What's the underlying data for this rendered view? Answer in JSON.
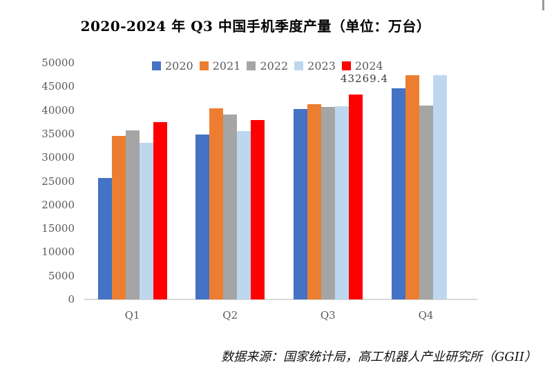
{
  "page": {
    "footer_text": "数据来源：国家统计局，高工机器人产业研究所（GGII）"
  },
  "chart_data": {
    "type": "bar",
    "title": "2020-2024 年 Q3 中国手机季度产量（单位：万台）",
    "unit": "万台",
    "categories": [
      "Q1",
      "Q2",
      "Q3",
      "Q4"
    ],
    "series": [
      {
        "name": "2020",
        "color": "#4472C4",
        "values": [
          25700,
          34800,
          40200,
          44600
        ]
      },
      {
        "name": "2021",
        "color": "#ED7D31",
        "values": [
          34500,
          40400,
          41200,
          47400
        ]
      },
      {
        "name": "2022",
        "color": "#A5A5A5",
        "values": [
          35700,
          39100,
          40600,
          41000
        ]
      },
      {
        "name": "2023",
        "color": "#BDD7EE",
        "values": [
          33100,
          35500,
          40800,
          47400
        ]
      },
      {
        "name": "2024",
        "color": "#FF0000",
        "values": [
          37500,
          37900,
          43269.4,
          null
        ]
      }
    ],
    "ylim": [
      0,
      50000
    ],
    "yticks": [
      0,
      5000,
      10000,
      15000,
      20000,
      25000,
      30000,
      35000,
      40000,
      45000,
      50000
    ],
    "grid": false,
    "legend_position": "top-center",
    "annotations": [
      {
        "text": "43269.4",
        "category": "Q3",
        "series": "2024"
      }
    ],
    "axis_label_color": "#595959",
    "baseline_color": "#D9D9D9"
  }
}
